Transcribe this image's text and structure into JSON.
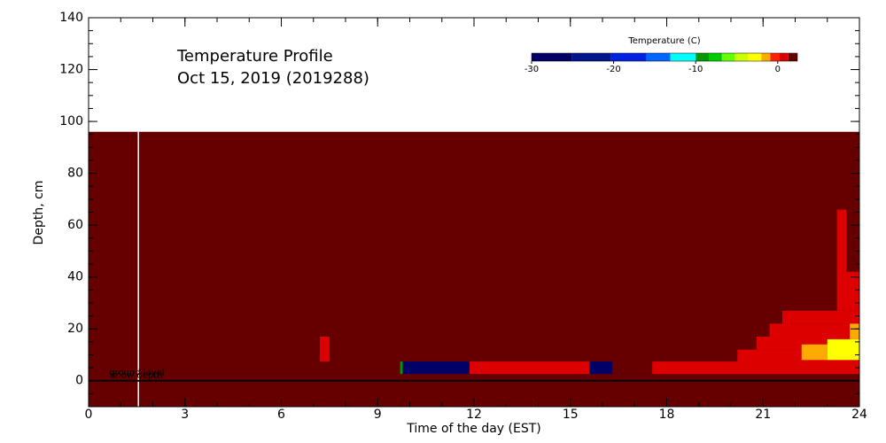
{
  "chart_data": {
    "type": "heatmap",
    "title": [
      "Temperature Profile",
      "Oct 15, 2019 (2019288)"
    ],
    "xlabel": "Time of the day (EST)",
    "ylabel": "Depth, cm",
    "xlim": [
      0,
      24
    ],
    "ylim": [
      -10,
      140
    ],
    "xticks": [
      0,
      3,
      6,
      9,
      12,
      15,
      18,
      21,
      24
    ],
    "yticks": [
      0,
      20,
      40,
      60,
      80,
      100,
      120,
      140
    ],
    "x_minor_step": 1,
    "y_minor_step": 5,
    "field_depth": [
      -10,
      96
    ],
    "background_value": 2,
    "cells": [
      {
        "x": [
          7.2,
          7.5
        ],
        "y": [
          7.4,
          17
        ],
        "value": 0.5
      },
      {
        "x": [
          9.7,
          9.78
        ],
        "y": [
          2.6,
          7.4
        ],
        "value": -9
      },
      {
        "x": [
          9.78,
          11.86
        ],
        "y": [
          2.6,
          7.4
        ],
        "value": -28
      },
      {
        "x": [
          11.86,
          15.59
        ],
        "y": [
          2.6,
          7.4
        ],
        "value": 0.5
      },
      {
        "x": [
          15.59,
          16.3
        ],
        "y": [
          2.6,
          7.4
        ],
        "value": -28
      },
      {
        "x": [
          17.55,
          24
        ],
        "y": [
          2.6,
          7.4
        ],
        "value": 0.5
      },
      {
        "x": [
          20.2,
          24
        ],
        "y": [
          7.4,
          12
        ],
        "value": 0.5
      },
      {
        "x": [
          20.8,
          24
        ],
        "y": [
          12,
          17
        ],
        "value": 0.5
      },
      {
        "x": [
          21.2,
          24
        ],
        "y": [
          17,
          22
        ],
        "value": 0.5
      },
      {
        "x": [
          21.6,
          24
        ],
        "y": [
          22,
          27
        ],
        "value": 1
      },
      {
        "x": [
          22.2,
          23
        ],
        "y": [
          8,
          14
        ],
        "value": -1.5
      },
      {
        "x": [
          23,
          24
        ],
        "y": [
          8,
          16
        ],
        "value": -3
      },
      {
        "x": [
          23.7,
          24
        ],
        "y": [
          16,
          22
        ],
        "value": -1.5
      },
      {
        "x": [
          23.3,
          23.6
        ],
        "y": [
          27,
          66
        ],
        "value": 1
      },
      {
        "x": [
          23.6,
          24
        ],
        "y": [
          27,
          42
        ],
        "value": 1
      }
    ],
    "ground_level": 0,
    "ground_label": "ground level",
    "snow_label": "snow depth",
    "snow_line_time": 1.55,
    "colorbar": {
      "title": "Temperature (C)",
      "lim": [
        -30,
        2.4
      ],
      "ticks": [
        -30,
        -20,
        -10,
        0
      ],
      "bounds": [
        -30,
        -25.1,
        -20.3,
        -16,
        -13.1,
        -10,
        -8.4,
        -6.8,
        -5.2,
        -3.6,
        -2,
        -0.9,
        0.2,
        1.3,
        2.4
      ],
      "colors": [
        "#000066",
        "#00148c",
        "#0022e0",
        "#0066ff",
        "#00ffff",
        "#009900",
        "#00cc00",
        "#66ff00",
        "#ccff00",
        "#ffff00",
        "#ffaa00",
        "#ff2200",
        "#dd0000",
        "#660000"
      ]
    }
  }
}
